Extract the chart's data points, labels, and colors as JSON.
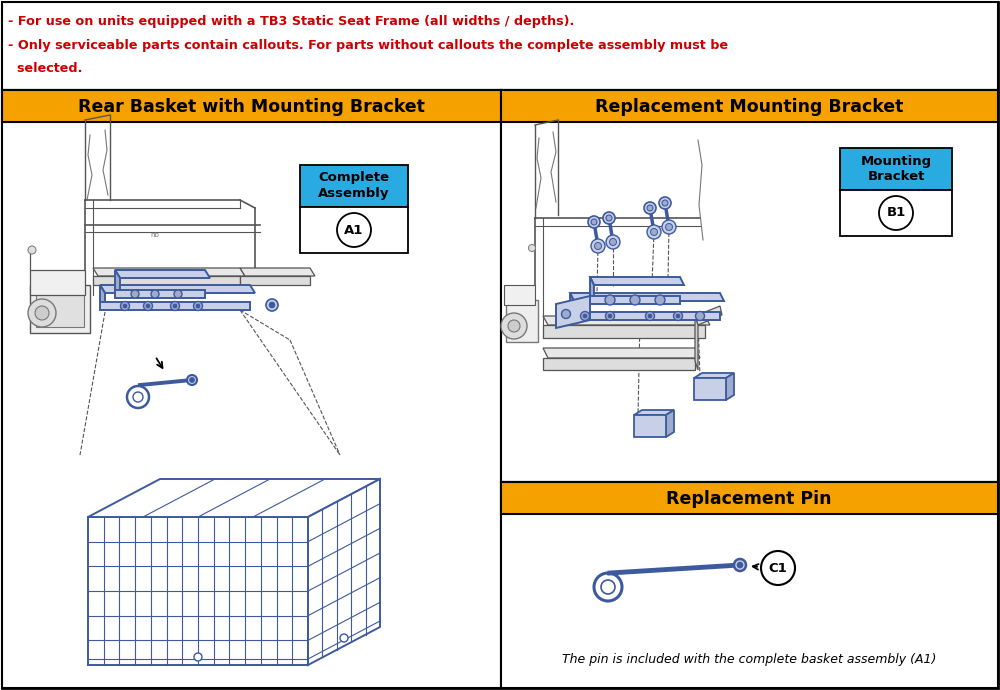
{
  "bg_color": "#ffffff",
  "orange_color": "#F5A100",
  "cyan_color": "#29ABE2",
  "red_color": "#CC0000",
  "part_blue": "#3D5A9E",
  "part_blue_light": "#C8D0E8",
  "part_blue_mid": "#A0AACC",
  "gray_line": "#555555",
  "gray_fill": "#E8E8E8",
  "gray_dark": "#999999",
  "black": "#000000",
  "white": "#ffffff",
  "note_line1": "- For use on units equipped with a TB3 Static Seat Frame (all widths / depths).",
  "note_line2": "- Only serviceable parts contain callouts. For parts without callouts the complete assembly must be",
  "note_line3": "  selected.",
  "panel_left_title": "Rear Basket with Mounting Bracket",
  "panel_right_top_title": "Replacement Mounting Bracket",
  "panel_right_bot_title": "Replacement Pin",
  "callout_a1_top": "Complete\nAssembly",
  "callout_a1_circle": "A1",
  "callout_b1_top": "Mounting\nBracket",
  "callout_b1_circle": "B1",
  "callout_c1_circle": "C1",
  "footer_text": "The pin is included with the complete basket assembly (A1)"
}
